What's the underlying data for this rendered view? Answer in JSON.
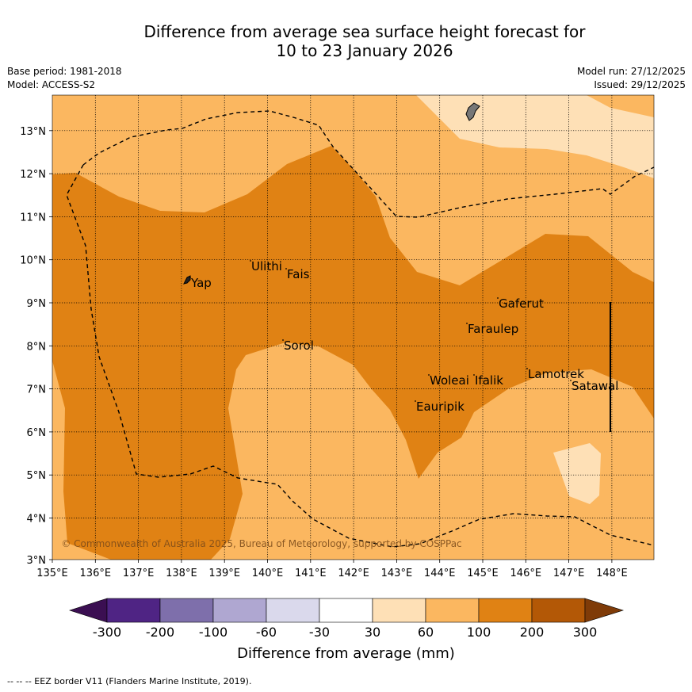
{
  "header": {
    "title_line1": "Difference from average sea surface height forecast for",
    "title_line2": "10 to 23 January 2026",
    "base_period": "Base period: 1981-2018",
    "model": "Model: ACCESS-S2",
    "model_run": "Model run: 27/12/2025",
    "issued": "Issued: 29/12/2025"
  },
  "map": {
    "lon_labels": [
      "135°E",
      "136°E",
      "137°E",
      "138°E",
      "139°E",
      "140°E",
      "141°E",
      "142°E",
      "143°E",
      "144°E",
      "145°E",
      "146°E",
      "147°E",
      "148°E"
    ],
    "lat_labels": [
      "13°N",
      "12°N",
      "11°N",
      "10°N",
      "9°N",
      "8°N",
      "7°N",
      "6°N",
      "5°N",
      "4°N",
      "3°N"
    ],
    "places": [
      "Yap",
      "Ulithi",
      "Fais",
      "Gaferut",
      "Faraulep",
      "Sorol",
      "Woleai",
      "Ifalik",
      "Lamotrek",
      "Satawal",
      "Eauripik"
    ],
    "copyright": "© Commonwealth of Australia 2025, Bureau of Meteorology, supported by COSPPac"
  },
  "colorbar": {
    "labels": [
      "-300",
      "-200",
      "-100",
      "-60",
      "-30",
      "30",
      "60",
      "100",
      "200",
      "300"
    ],
    "colors": [
      "#3b0f52",
      "#4f2484",
      "#7e6fab",
      "#afa7d1",
      "#dad9ec",
      "#ffffff",
      "#fee0b6",
      "#fbb760",
      "#e08214",
      "#b35806",
      "#7f3b08"
    ],
    "title": "Difference from average (mm)"
  },
  "footer": {
    "eez_note": "--  --  -- EEZ border V11 (Flanders Marine Institute, 2019)."
  }
}
